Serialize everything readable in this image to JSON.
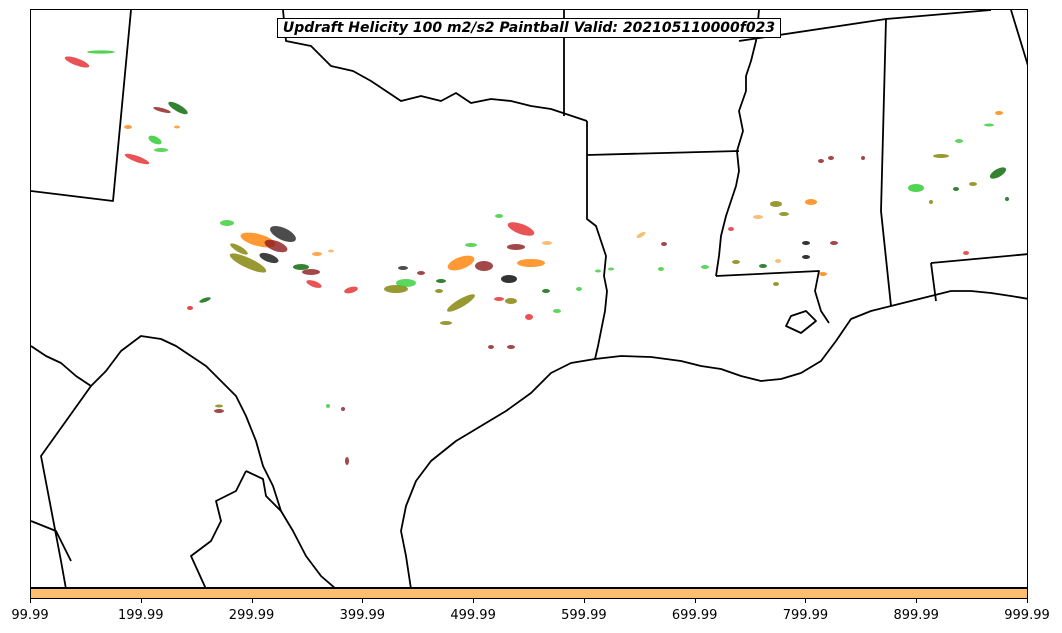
{
  "map": {
    "title": "Updraft Helicity 100 m2/s2 Paintball Valid: 202105110000f023",
    "colors": {
      "border": "#000000",
      "colorbar": "#fdbf6f",
      "members": [
        "#e31a1c",
        "#ff7f00",
        "#33cc33",
        "#808000",
        "#8b1a1a",
        "#006400",
        "#000000",
        "#f7a13c"
      ]
    }
  },
  "colorbar": {
    "tick_labels": [
      "99.99",
      "199.99",
      "299.99",
      "399.99",
      "499.99",
      "599.99",
      "699.99",
      "799.99",
      "899.99",
      "999.99"
    ]
  }
}
